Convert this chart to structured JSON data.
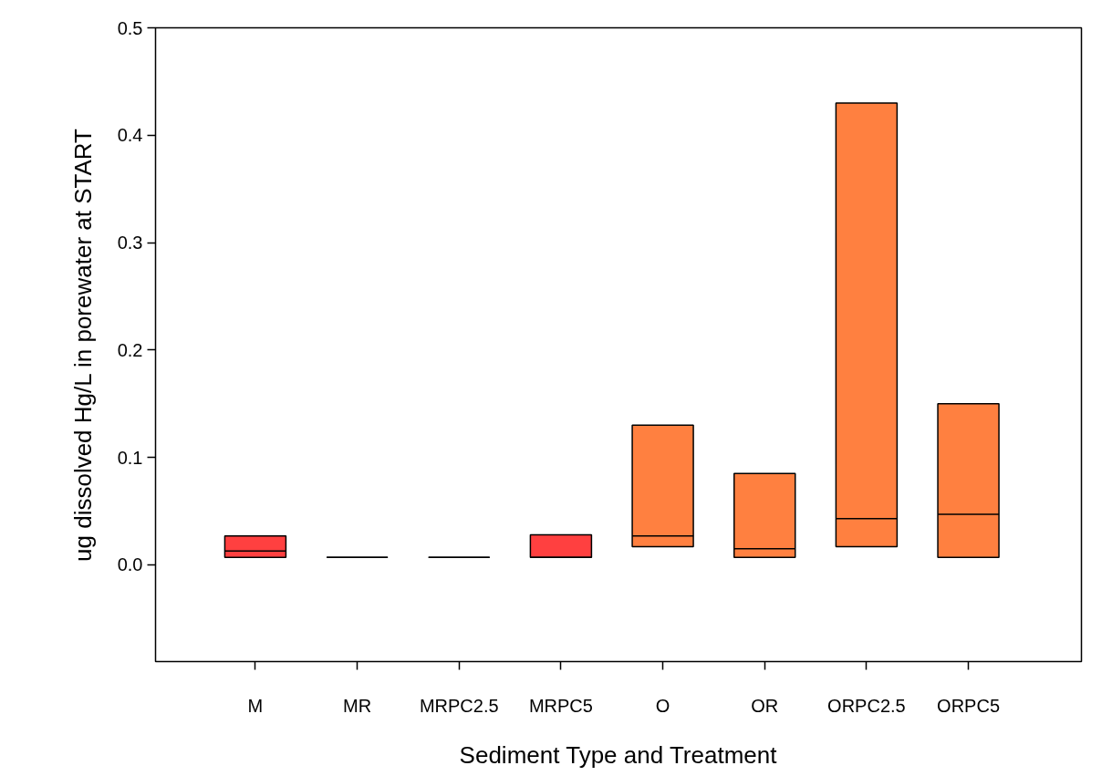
{
  "chart_data": {
    "type": "box",
    "xlabel": "Sediment Type and Treatment",
    "ylabel": "ug dissolved Hg/L in porewater at START",
    "categories": [
      "M",
      "MR",
      "MRPC2.5",
      "MRPC5",
      "O",
      "OR",
      "ORPC2.5",
      "ORPC5"
    ],
    "colors": [
      "#ff4040",
      "#000000",
      "#000000",
      "#ff4040",
      "#ff8040",
      "#ff8040",
      "#ff8040",
      "#ff8040"
    ],
    "boxes": [
      {
        "low": 0.007,
        "q1": 0.007,
        "median": 0.013,
        "q3": 0.027,
        "high": 0.027
      },
      {
        "low": 0.007,
        "q1": 0.007,
        "median": 0.007,
        "q3": 0.007,
        "high": 0.007
      },
      {
        "low": 0.007,
        "q1": 0.007,
        "median": 0.007,
        "q3": 0.007,
        "high": 0.007
      },
      {
        "low": 0.007,
        "q1": 0.007,
        "median": 0.007,
        "q3": 0.028,
        "high": 0.028
      },
      {
        "low": 0.017,
        "q1": 0.017,
        "median": 0.027,
        "q3": 0.13,
        "high": 0.13
      },
      {
        "low": 0.007,
        "q1": 0.007,
        "median": 0.015,
        "q3": 0.085,
        "high": 0.085
      },
      {
        "low": 0.017,
        "q1": 0.017,
        "median": 0.043,
        "q3": 0.43,
        "high": 0.43
      },
      {
        "low": 0.007,
        "q1": 0.007,
        "median": 0.047,
        "q3": 0.15,
        "high": 0.15
      }
    ],
    "ylim": [
      -0.09,
      0.5
    ],
    "yticks": [
      {
        "value": 0,
        "label": "0.0"
      },
      0.1,
      0.2,
      0.3,
      0.4,
      0.5
    ],
    "grid": false
  }
}
